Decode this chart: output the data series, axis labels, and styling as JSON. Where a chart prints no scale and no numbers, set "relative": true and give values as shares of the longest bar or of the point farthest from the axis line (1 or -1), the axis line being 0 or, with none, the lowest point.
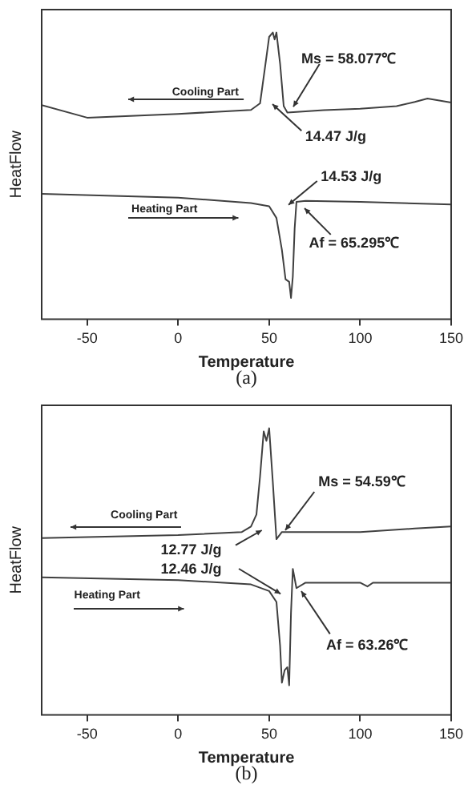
{
  "chart_data": [
    {
      "type": "line",
      "relative": true,
      "xlabel": "Temperature",
      "ylabel": "HeatFlow",
      "xlim": [
        -75,
        150
      ],
      "xticks": [
        -50,
        0,
        50,
        100,
        150
      ],
      "marker": "none",
      "legend": false,
      "annotations": [
        "Cooling Part",
        "Heating Part",
        "Ms = 58.077℃",
        "14.47 J/g",
        "14.53 J/g",
        "Af = 65.295℃",
        "(a)"
      ],
      "series": [
        {
          "color": "#404040",
          "x": [
            -75,
            -50,
            0,
            40,
            45,
            48,
            50,
            52,
            53,
            54,
            56,
            58,
            60,
            80,
            100,
            120,
            130,
            137,
            150
          ],
          "values": [
            0.747,
            0.703,
            0.716,
            0.73,
            0.753,
            0.892,
            0.985,
            1,
            0.976,
            1,
            0.892,
            0.743,
            0.721,
            0.729,
            0.734,
            0.743,
            0.758,
            0.77,
            0.756
          ]
        },
        {
          "color": "#404040",
          "x": [
            -75,
            0,
            40,
            50,
            54,
            57,
            59,
            61,
            62,
            63,
            64,
            65,
            70,
            100,
            150
          ],
          "values": [
            0.437,
            0.424,
            0.405,
            0.394,
            0.353,
            0.242,
            0.139,
            0.13,
            0.074,
            0.149,
            0.316,
            0.409,
            0.413,
            0.409,
            0.4
          ]
        }
      ]
    },
    {
      "type": "line",
      "relative": true,
      "xlabel": "Temperature",
      "ylabel": "HeatFlow",
      "xlim": [
        -75,
        150
      ],
      "xticks": [
        -50,
        0,
        50,
        100,
        150
      ],
      "marker": "none",
      "legend": false,
      "annotations": [
        "Cooling Part",
        "Heating Part",
        "Ms = 54.59℃",
        "12.77 J/g",
        "12.46 J/g",
        "Af = 63.26℃",
        "(b)"
      ],
      "series": [
        {
          "color": "#404040",
          "x": [
            -75,
            0,
            35,
            40,
            43,
            45,
            47,
            48.5,
            50,
            52,
            54,
            57,
            100,
            130,
            150
          ],
          "values": [
            0.617,
            0.627,
            0.638,
            0.657,
            0.699,
            0.832,
            0.989,
            0.956,
            1,
            0.813,
            0.613,
            0.638,
            0.638,
            0.65,
            0.657
          ]
        },
        {
          "color": "#404040",
          "x": [
            -75,
            0,
            40,
            50,
            54,
            56,
            57,
            58.5,
            60,
            61,
            62,
            63,
            65,
            70,
            100,
            104,
            107,
            150
          ],
          "values": [
            0.48,
            0.47,
            0.455,
            0.432,
            0.394,
            0.242,
            0.112,
            0.156,
            0.166,
            0.103,
            0.356,
            0.509,
            0.442,
            0.461,
            0.461,
            0.448,
            0.461,
            0.461
          ]
        }
      ]
    }
  ]
}
